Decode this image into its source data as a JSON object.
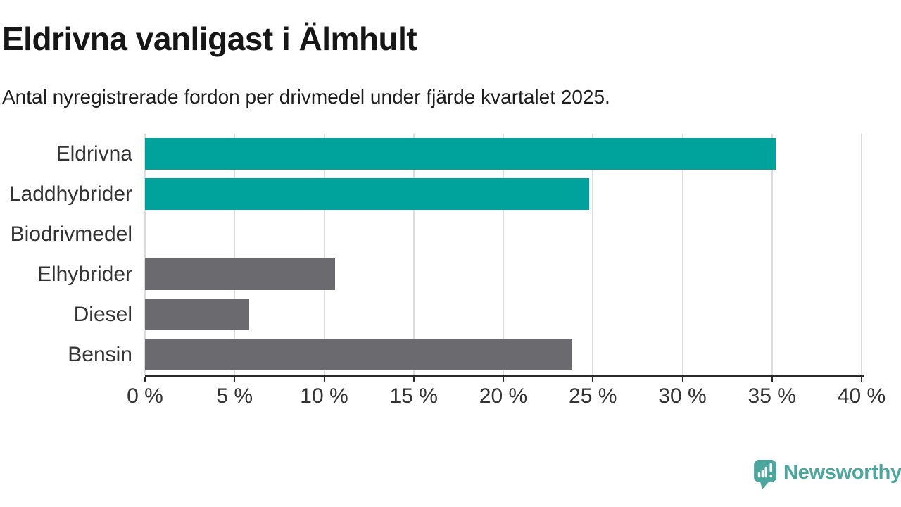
{
  "header": {
    "title": "Eldrivna vanligast i Älmhult",
    "subtitle": "Antal nyregistrerade fordon per drivmedel under fjärde kvartalet 2025."
  },
  "chart_data": {
    "type": "bar",
    "orientation": "horizontal",
    "title": "Eldrivna vanligast i Älmhult",
    "subtitle": "Antal nyregistrerade fordon per drivmedel under fjärde kvartalet 2025.",
    "categories": [
      "Eldrivna",
      "Laddhybrider",
      "Biodrivmedel",
      "Elhybrider",
      "Diesel",
      "Bensin"
    ],
    "values": [
      35.2,
      24.8,
      0,
      10.6,
      5.8,
      23.8
    ],
    "bar_colors": [
      "#00a39b",
      "#00a39b",
      "#6b6a6e",
      "#6b6a6e",
      "#6b6a6e",
      "#6b6a6e"
    ],
    "xlabel": "",
    "ylabel": "",
    "xlim": [
      0,
      40
    ],
    "x_ticks": [
      0,
      5,
      10,
      15,
      20,
      25,
      30,
      35,
      40
    ],
    "x_tick_format": "{v} %",
    "grid": true,
    "legend": false
  },
  "colors": {
    "highlight_teal": "#00a39b",
    "neutral_gray": "#6b6a6e",
    "gridline": "#dcdcdc",
    "axis": "#2a2a2a",
    "label_text": "#333333",
    "logo_teal": "#4ba69e"
  },
  "footer": {
    "brand": "Newsworthy",
    "logo_icon": "newsworthy-speech-bubble-bar-chart-icon"
  }
}
